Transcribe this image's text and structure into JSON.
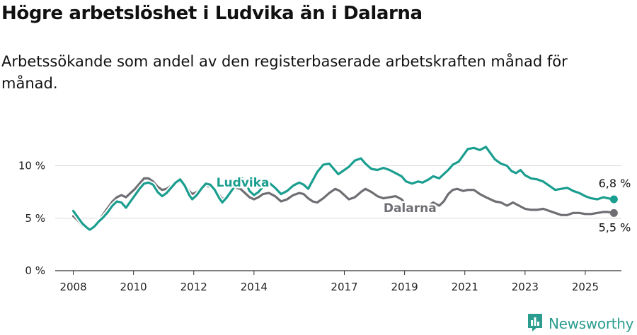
{
  "title": "Högre arbetslöshet i Ludvika än i Dalarna",
  "subtitle": "Arbetssökande som andel av den registerbaserade arbetskraften månad för månad.",
  "brand": {
    "name": "Newsworthy",
    "icon": "newsworthy-logo-icon",
    "color": "#2a9d8f"
  },
  "chart_data": {
    "type": "line",
    "grid": "horizontal",
    "ylim": [
      0,
      13
    ],
    "yticks": [
      0,
      5,
      10
    ],
    "ytick_labels": [
      "0 %",
      "5 %",
      "10 %"
    ],
    "xlim": [
      2007.4,
      2026.2
    ],
    "xticks": [
      2008,
      2010,
      2012,
      2014,
      2017,
      2019,
      2021,
      2023,
      2025
    ],
    "xtick_labels": [
      "2008",
      "2010",
      "2012",
      "2014",
      "2017",
      "2019",
      "2021",
      "2023",
      "2025"
    ],
    "series": [
      {
        "name": "Ludvika",
        "color": "#1a9e8f",
        "end_label": "6,8 %",
        "points": [
          [
            2008.0,
            5.7
          ],
          [
            2008.15,
            5.1
          ],
          [
            2008.3,
            4.5
          ],
          [
            2008.45,
            4.1
          ],
          [
            2008.55,
            3.9
          ],
          [
            2008.7,
            4.2
          ],
          [
            2008.85,
            4.7
          ],
          [
            2009.0,
            5.1
          ],
          [
            2009.15,
            5.6
          ],
          [
            2009.3,
            6.2
          ],
          [
            2009.45,
            6.6
          ],
          [
            2009.6,
            6.5
          ],
          [
            2009.75,
            6.0
          ],
          [
            2009.9,
            6.6
          ],
          [
            2010.05,
            7.2
          ],
          [
            2010.2,
            7.8
          ],
          [
            2010.35,
            8.3
          ],
          [
            2010.5,
            8.4
          ],
          [
            2010.65,
            8.2
          ],
          [
            2010.8,
            7.5
          ],
          [
            2010.95,
            7.1
          ],
          [
            2011.1,
            7.4
          ],
          [
            2011.25,
            7.9
          ],
          [
            2011.4,
            8.4
          ],
          [
            2011.55,
            8.7
          ],
          [
            2011.7,
            8.1
          ],
          [
            2011.85,
            7.2
          ],
          [
            2011.95,
            6.8
          ],
          [
            2012.1,
            7.2
          ],
          [
            2012.25,
            7.8
          ],
          [
            2012.4,
            8.3
          ],
          [
            2012.55,
            8.2
          ],
          [
            2012.7,
            7.7
          ],
          [
            2012.85,
            6.9
          ],
          [
            2012.95,
            6.5
          ],
          [
            2013.1,
            7.0
          ],
          [
            2013.25,
            7.6
          ],
          [
            2013.4,
            8.2
          ],
          [
            2013.55,
            8.9
          ],
          [
            2013.7,
            8.6
          ],
          [
            2013.85,
            7.6
          ],
          [
            2014.0,
            7.2
          ],
          [
            2014.15,
            7.5
          ],
          [
            2014.3,
            8.0
          ],
          [
            2014.5,
            8.4
          ],
          [
            2014.7,
            7.9
          ],
          [
            2014.9,
            7.3
          ],
          [
            2015.1,
            7.6
          ],
          [
            2015.3,
            8.1
          ],
          [
            2015.5,
            8.4
          ],
          [
            2015.65,
            8.2
          ],
          [
            2015.8,
            7.8
          ],
          [
            2015.95,
            8.6
          ],
          [
            2016.1,
            9.4
          ],
          [
            2016.3,
            10.1
          ],
          [
            2016.5,
            10.2
          ],
          [
            2016.65,
            9.7
          ],
          [
            2016.8,
            9.2
          ],
          [
            2016.95,
            9.5
          ],
          [
            2017.15,
            9.9
          ],
          [
            2017.35,
            10.5
          ],
          [
            2017.55,
            10.7
          ],
          [
            2017.7,
            10.2
          ],
          [
            2017.9,
            9.7
          ],
          [
            2018.1,
            9.6
          ],
          [
            2018.3,
            9.8
          ],
          [
            2018.5,
            9.6
          ],
          [
            2018.7,
            9.3
          ],
          [
            2018.9,
            9.0
          ],
          [
            2019.05,
            8.5
          ],
          [
            2019.25,
            8.3
          ],
          [
            2019.45,
            8.5
          ],
          [
            2019.6,
            8.4
          ],
          [
            2019.8,
            8.7
          ],
          [
            2019.95,
            9.0
          ],
          [
            2020.15,
            8.8
          ],
          [
            2020.3,
            9.2
          ],
          [
            2020.45,
            9.6
          ],
          [
            2020.6,
            10.1
          ],
          [
            2020.8,
            10.4
          ],
          [
            2020.95,
            11.0
          ],
          [
            2021.1,
            11.6
          ],
          [
            2021.3,
            11.7
          ],
          [
            2021.5,
            11.5
          ],
          [
            2021.7,
            11.8
          ],
          [
            2021.85,
            11.2
          ],
          [
            2022.0,
            10.6
          ],
          [
            2022.2,
            10.2
          ],
          [
            2022.4,
            10.0
          ],
          [
            2022.55,
            9.5
          ],
          [
            2022.7,
            9.3
          ],
          [
            2022.85,
            9.6
          ],
          [
            2023.0,
            9.1
          ],
          [
            2023.2,
            8.8
          ],
          [
            2023.4,
            8.7
          ],
          [
            2023.6,
            8.5
          ],
          [
            2023.8,
            8.1
          ],
          [
            2024.0,
            7.7
          ],
          [
            2024.2,
            7.8
          ],
          [
            2024.4,
            7.9
          ],
          [
            2024.6,
            7.6
          ],
          [
            2024.8,
            7.4
          ],
          [
            2025.0,
            7.1
          ],
          [
            2025.2,
            6.9
          ],
          [
            2025.4,
            6.8
          ],
          [
            2025.6,
            7.0
          ],
          [
            2025.75,
            6.9
          ],
          [
            2025.95,
            6.8
          ]
        ]
      },
      {
        "name": "Dalarna",
        "color": "#6e6e73",
        "end_label": "5,5 %",
        "points": [
          [
            2008.0,
            5.2
          ],
          [
            2008.15,
            4.8
          ],
          [
            2008.3,
            4.3
          ],
          [
            2008.45,
            4.0
          ],
          [
            2008.55,
            3.9
          ],
          [
            2008.7,
            4.2
          ],
          [
            2008.85,
            4.8
          ],
          [
            2009.0,
            5.4
          ],
          [
            2009.15,
            6.0
          ],
          [
            2009.3,
            6.6
          ],
          [
            2009.45,
            7.0
          ],
          [
            2009.6,
            7.2
          ],
          [
            2009.75,
            7.0
          ],
          [
            2009.9,
            7.4
          ],
          [
            2010.05,
            7.8
          ],
          [
            2010.2,
            8.3
          ],
          [
            2010.35,
            8.8
          ],
          [
            2010.5,
            8.8
          ],
          [
            2010.65,
            8.5
          ],
          [
            2010.8,
            8.0
          ],
          [
            2010.95,
            7.7
          ],
          [
            2011.1,
            7.8
          ],
          [
            2011.25,
            8.1
          ],
          [
            2011.4,
            8.3
          ],
          [
            2011.55,
            8.5
          ],
          [
            2011.7,
            8.2
          ],
          [
            2011.85,
            7.6
          ],
          [
            2011.95,
            7.3
          ],
          [
            2012.1,
            7.5
          ],
          [
            2012.25,
            7.9
          ],
          [
            2012.4,
            8.1
          ],
          [
            2012.55,
            8.0
          ],
          [
            2012.7,
            7.6
          ],
          [
            2012.85,
            7.2
          ],
          [
            2012.95,
            6.8
          ],
          [
            2013.1,
            7.1
          ],
          [
            2013.25,
            7.6
          ],
          [
            2013.4,
            7.9
          ],
          [
            2013.55,
            7.8
          ],
          [
            2013.7,
            7.4
          ],
          [
            2013.85,
            7.0
          ],
          [
            2014.0,
            6.8
          ],
          [
            2014.15,
            7.0
          ],
          [
            2014.3,
            7.3
          ],
          [
            2014.5,
            7.4
          ],
          [
            2014.7,
            7.1
          ],
          [
            2014.9,
            6.6
          ],
          [
            2015.1,
            6.8
          ],
          [
            2015.3,
            7.2
          ],
          [
            2015.5,
            7.4
          ],
          [
            2015.65,
            7.3
          ],
          [
            2015.8,
            6.9
          ],
          [
            2015.95,
            6.6
          ],
          [
            2016.1,
            6.5
          ],
          [
            2016.3,
            6.9
          ],
          [
            2016.5,
            7.4
          ],
          [
            2016.7,
            7.8
          ],
          [
            2016.85,
            7.6
          ],
          [
            2017.0,
            7.2
          ],
          [
            2017.15,
            6.8
          ],
          [
            2017.35,
            7.0
          ],
          [
            2017.55,
            7.5
          ],
          [
            2017.7,
            7.8
          ],
          [
            2017.9,
            7.5
          ],
          [
            2018.1,
            7.1
          ],
          [
            2018.3,
            6.9
          ],
          [
            2018.5,
            7.0
          ],
          [
            2018.7,
            7.1
          ],
          [
            2018.9,
            6.8
          ],
          [
            2019.05,
            6.3
          ],
          [
            2019.25,
            6.0
          ],
          [
            2019.45,
            6.2
          ],
          [
            2019.6,
            6.0
          ],
          [
            2019.8,
            6.2
          ],
          [
            2019.95,
            6.5
          ],
          [
            2020.15,
            6.2
          ],
          [
            2020.3,
            6.6
          ],
          [
            2020.45,
            7.3
          ],
          [
            2020.6,
            7.7
          ],
          [
            2020.75,
            7.8
          ],
          [
            2020.95,
            7.6
          ],
          [
            2021.1,
            7.7
          ],
          [
            2021.3,
            7.7
          ],
          [
            2021.5,
            7.3
          ],
          [
            2021.7,
            7.0
          ],
          [
            2021.85,
            6.8
          ],
          [
            2022.0,
            6.6
          ],
          [
            2022.2,
            6.5
          ],
          [
            2022.4,
            6.2
          ],
          [
            2022.6,
            6.5
          ],
          [
            2022.8,
            6.2
          ],
          [
            2023.0,
            5.9
          ],
          [
            2023.2,
            5.8
          ],
          [
            2023.4,
            5.8
          ],
          [
            2023.6,
            5.9
          ],
          [
            2023.8,
            5.7
          ],
          [
            2024.0,
            5.5
          ],
          [
            2024.2,
            5.3
          ],
          [
            2024.4,
            5.3
          ],
          [
            2024.6,
            5.5
          ],
          [
            2024.8,
            5.5
          ],
          [
            2025.0,
            5.4
          ],
          [
            2025.2,
            5.4
          ],
          [
            2025.4,
            5.5
          ],
          [
            2025.6,
            5.6
          ],
          [
            2025.75,
            5.6
          ],
          [
            2025.95,
            5.5
          ]
        ]
      }
    ]
  }
}
